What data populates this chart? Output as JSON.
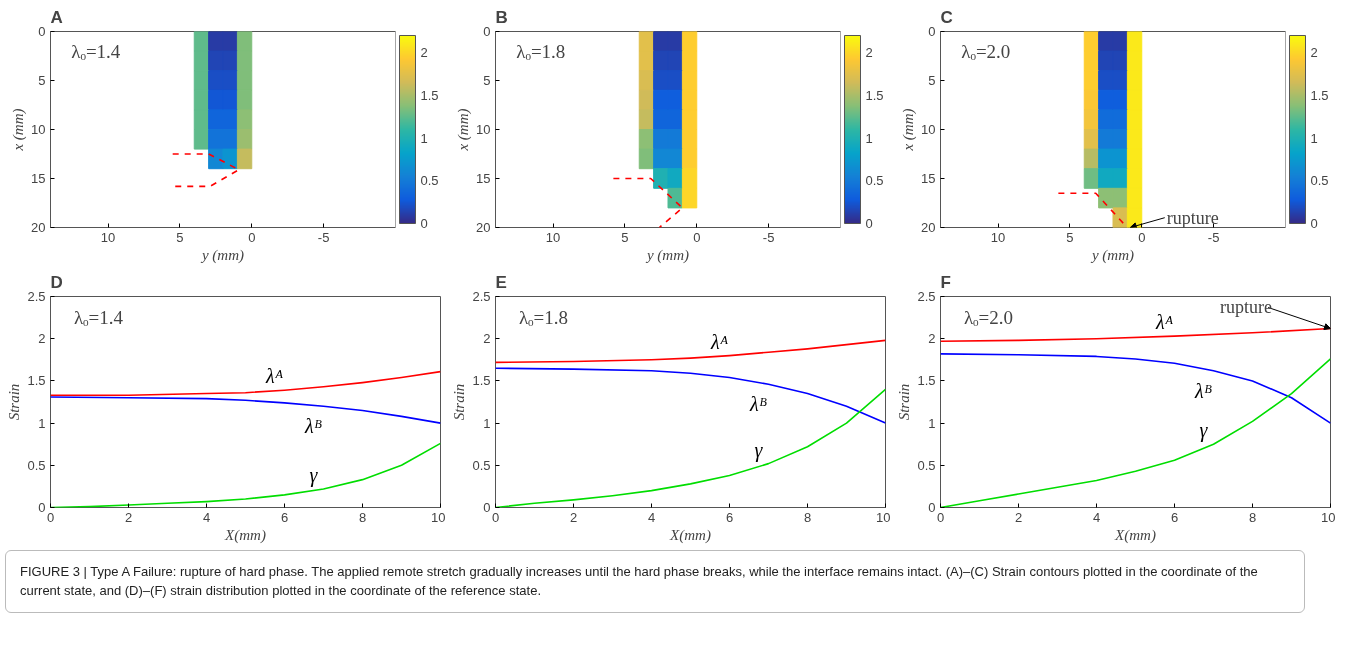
{
  "chart_data": [
    {
      "type": "scatter",
      "title": "A",
      "subtitle": "λₒ=1.4",
      "xlabel": "y (mm)",
      "ylabel": "x (mm)",
      "clim": [
        0,
        2.2
      ],
      "cticks": [
        0,
        0.5,
        1,
        1.5,
        2
      ],
      "xlim": [
        14,
        -10
      ],
      "xticks": [
        10,
        5,
        0,
        -5
      ],
      "ylim": [
        20,
        0
      ],
      "yticks": [
        0,
        5,
        10,
        15,
        20
      ],
      "series": [
        {
          "type": "scatter",
          "marker": "square",
          "x": [
            3.5,
            2.5,
            1.5,
            0.5,
            3.5,
            2.5,
            1.5,
            0.5,
            3.5,
            2.5,
            1.5,
            0.5,
            3.5,
            2.5,
            1.5,
            0.5,
            3.5,
            2.5,
            1.5,
            0.5,
            3.5,
            2.5,
            1.5,
            0.5,
            2.5,
            1.5,
            0.5
          ],
          "values": [
            1,
            1,
            1,
            1,
            3,
            3,
            3,
            3,
            5,
            5,
            5,
            5,
            7,
            7,
            7,
            7,
            9,
            9,
            9,
            9,
            11,
            11,
            11,
            11,
            13,
            13,
            13
          ],
          "cvalues": [
            1.25,
            0.1,
            0.1,
            1.35,
            1.25,
            0.15,
            0.15,
            1.35,
            1.25,
            0.2,
            0.2,
            1.35,
            1.25,
            0.25,
            0.25,
            1.35,
            1.25,
            0.35,
            0.35,
            1.4,
            1.25,
            0.45,
            0.45,
            1.45,
            0.6,
            0.7,
            1.6
          ],
          "colors": [
            "#5fbb8c",
            "#263ca6",
            "#263ca6",
            "#7fbe7b",
            "#5fbb8c",
            "#1f45b6",
            "#1f45b6",
            "#7fbe7b",
            "#5fbb8c",
            "#184ec6",
            "#184ec6",
            "#7fbe7b",
            "#5fbb8c",
            "#1157d5",
            "#1157d5",
            "#7fbe7b",
            "#5fbb8c",
            "#1066db",
            "#1066db",
            "#8ebf74",
            "#5fbb8c",
            "#1274d9",
            "#1274d9",
            "#9bbe6f",
            "#1287d4",
            "#0c94d0",
            "#c4bc5f"
          ]
        },
        {
          "type": "line",
          "color": "#ff0000",
          "line_style": "dashed",
          "x": [
            5.5,
            3.0,
            0.9,
            2.9,
            5.5
          ],
          "values": [
            12.5,
            12.5,
            14.1,
            15.8,
            15.8
          ]
        }
      ]
    },
    {
      "type": "scatter",
      "title": "B",
      "subtitle": "λₒ=1.8",
      "xlabel": "y (mm)",
      "ylabel": "x (mm)",
      "clim": [
        0,
        2.2
      ],
      "cticks": [
        0,
        0.5,
        1,
        1.5,
        2
      ],
      "xlim": [
        14,
        -10
      ],
      "xticks": [
        10,
        5,
        0,
        -5
      ],
      "ylim": [
        20,
        0
      ],
      "yticks": [
        0,
        5,
        10,
        15,
        20
      ],
      "series": [
        {
          "type": "scatter",
          "marker": "square",
          "x": [
            3.5,
            2.5,
            1.5,
            0.5,
            3.5,
            2.5,
            1.5,
            0.5,
            3.5,
            2.5,
            1.5,
            0.5,
            3.5,
            2.5,
            1.5,
            0.5,
            3.5,
            2.5,
            1.5,
            0.5,
            3.5,
            2.5,
            1.5,
            0.5,
            3.5,
            2.5,
            1.5,
            0.5,
            2.5,
            1.5,
            0.5,
            1.5,
            0.5
          ],
          "values": [
            1,
            1,
            1,
            1,
            3,
            3,
            3,
            3,
            5,
            5,
            5,
            5,
            7,
            7,
            7,
            7,
            9,
            9,
            9,
            9,
            11,
            11,
            11,
            11,
            13,
            13,
            13,
            13,
            15,
            15,
            15,
            17,
            17
          ],
          "cvalues": [
            1.75,
            0.1,
            0.1,
            1.95,
            1.75,
            0.15,
            0.15,
            1.95,
            1.7,
            0.2,
            0.2,
            1.95,
            1.65,
            0.3,
            0.3,
            1.95,
            1.6,
            0.35,
            0.35,
            1.95,
            1.4,
            0.5,
            0.5,
            1.95,
            1.35,
            0.6,
            0.6,
            1.95,
            1.0,
            0.9,
            2.0,
            1.2,
            2.0
          ],
          "colors": [
            "#e1c04b",
            "#263ca6",
            "#263ca6",
            "#fecd2f",
            "#e1c04b",
            "#1f45b6",
            "#1f45b6",
            "#fecd2f",
            "#d9bd52",
            "#184ec6",
            "#184ec6",
            "#fecd2f",
            "#d1bb59",
            "#105fdc",
            "#105fdc",
            "#fecd2f",
            "#c4bc5f",
            "#1066db",
            "#1066db",
            "#fecd2f",
            "#8ebf74",
            "#137ad7",
            "#137ad7",
            "#fecd2f",
            "#7fbe7b",
            "#1287d4",
            "#1287d4",
            "#fecd2f",
            "#1fb0b2",
            "#11a9c0",
            "#fdd628",
            "#4eba94",
            "#fdd628"
          ]
        },
        {
          "type": "line",
          "color": "#ff0000",
          "line_style": "dashed",
          "x": [
            5.8,
            3.2,
            1.0,
            2.6
          ],
          "values": [
            15,
            15,
            18,
            20
          ]
        }
      ]
    },
    {
      "type": "scatter",
      "title": "C",
      "subtitle": "λₒ=2.0",
      "xlabel": "y (mm)",
      "ylabel": "x (mm)",
      "clim": [
        0,
        2.2
      ],
      "cticks": [
        0,
        0.5,
        1,
        1.5,
        2
      ],
      "xlim": [
        14,
        -10
      ],
      "xticks": [
        10,
        5,
        0,
        -5
      ],
      "ylim": [
        20,
        0
      ],
      "yticks": [
        0,
        5,
        10,
        15,
        20
      ],
      "series": [
        {
          "type": "scatter",
          "marker": "square",
          "x": [
            3.5,
            2.5,
            1.5,
            0.5,
            3.5,
            2.5,
            1.5,
            0.5,
            3.5,
            2.5,
            1.5,
            0.5,
            3.5,
            2.5,
            1.5,
            0.5,
            3.5,
            2.5,
            1.5,
            0.5,
            3.5,
            2.5,
            1.5,
            0.5,
            3.5,
            2.5,
            1.5,
            0.5,
            3.5,
            2.5,
            1.5,
            0.5,
            2.5,
            1.5,
            0.5,
            1.5,
            0.5
          ],
          "values": [
            1,
            1,
            1,
            1,
            3,
            3,
            3,
            3,
            5,
            5,
            5,
            5,
            7,
            7,
            7,
            7,
            9,
            9,
            9,
            9,
            11,
            11,
            11,
            11,
            13,
            13,
            13,
            13,
            15,
            15,
            15,
            15,
            17,
            17,
            17,
            19,
            19
          ],
          "cvalues": [
            1.95,
            0.1,
            0.1,
            2.1,
            1.95,
            0.15,
            0.15,
            2.1,
            1.95,
            0.2,
            0.2,
            2.1,
            1.9,
            0.3,
            0.3,
            2.1,
            1.85,
            0.4,
            0.4,
            2.1,
            1.75,
            0.5,
            0.5,
            2.1,
            1.55,
            0.7,
            0.7,
            2.1,
            1.3,
            0.9,
            0.9,
            2.1,
            1.4,
            1.4,
            2.1,
            1.7,
            2.1
          ],
          "colors": [
            "#fecd2f",
            "#263ca6",
            "#263ca6",
            "#fbe81b",
            "#fecd2f",
            "#1f45b6",
            "#1f45b6",
            "#fbe81b",
            "#fecd2f",
            "#184ec6",
            "#184ec6",
            "#fbe81b",
            "#fac736",
            "#105fdc",
            "#105fdc",
            "#fbe81b",
            "#f2c43d",
            "#116dda",
            "#116dda",
            "#fbe81b",
            "#e1c04b",
            "#137ad7",
            "#137ad7",
            "#fbe81b",
            "#b6bd64",
            "#0c94d0",
            "#0c94d0",
            "#fbe81b",
            "#6fbd83",
            "#11a9c0",
            "#11a9c0",
            "#fbe81b",
            "#8ebf74",
            "#8ebf74",
            "#fbe81b",
            "#d9bd52",
            "#fbe81b"
          ]
        },
        {
          "type": "line",
          "color": "#ff0000",
          "line_style": "dashed",
          "x": [
            5.8,
            3.2,
            1.2
          ],
          "values": [
            16.5,
            16.5,
            19.7
          ]
        }
      ],
      "annotations": [
        {
          "text": "rupture",
          "x": 0.8,
          "y": 20
        }
      ]
    },
    {
      "type": "line",
      "title": "D",
      "subtitle": "λₒ=1.4",
      "xlabel": "X(mm)",
      "ylabel": "Strain",
      "xlim": [
        0,
        10
      ],
      "xticks": [
        0,
        2,
        4,
        6,
        8,
        10
      ],
      "ylim": [
        0,
        2.5
      ],
      "yticks": [
        0,
        0.5,
        1,
        1.5,
        2,
        2.5
      ],
      "series": [
        {
          "name": "λᴬ",
          "color": "#ff0000",
          "x": [
            0,
            2,
            4,
            5,
            6,
            7,
            8,
            9,
            10
          ],
          "values": [
            1.33,
            1.33,
            1.35,
            1.36,
            1.39,
            1.43,
            1.48,
            1.54,
            1.61
          ]
        },
        {
          "name": "λᴮ",
          "color": "#0000ff",
          "x": [
            0,
            2,
            4,
            5,
            6,
            7,
            8,
            9,
            10
          ],
          "values": [
            1.31,
            1.3,
            1.29,
            1.27,
            1.24,
            1.2,
            1.15,
            1.08,
            1.0
          ]
        },
        {
          "name": "γ",
          "color": "#00dd00",
          "x": [
            0,
            1,
            2,
            3,
            4,
            5,
            6,
            7,
            8,
            9,
            10
          ],
          "values": [
            0,
            0.01,
            0.03,
            0.05,
            0.07,
            0.1,
            0.15,
            0.22,
            0.33,
            0.5,
            0.76
          ]
        }
      ]
    },
    {
      "type": "line",
      "title": "E",
      "subtitle": "λₒ=1.8",
      "xlabel": "X(mm)",
      "ylabel": "Strain",
      "xlim": [
        0,
        10
      ],
      "xticks": [
        0,
        2,
        4,
        6,
        8,
        10
      ],
      "ylim": [
        0,
        2.5
      ],
      "yticks": [
        0,
        0.5,
        1,
        1.5,
        2,
        2.5
      ],
      "series": [
        {
          "name": "λᴬ",
          "color": "#ff0000",
          "x": [
            0,
            2,
            4,
            5,
            6,
            7,
            8,
            9,
            10
          ],
          "values": [
            1.72,
            1.73,
            1.75,
            1.77,
            1.8,
            1.84,
            1.88,
            1.93,
            1.98
          ]
        },
        {
          "name": "λᴮ",
          "color": "#0000ff",
          "x": [
            0,
            2,
            4,
            5,
            6,
            7,
            8,
            9,
            10
          ],
          "values": [
            1.65,
            1.64,
            1.62,
            1.59,
            1.54,
            1.46,
            1.35,
            1.2,
            1.0
          ]
        },
        {
          "name": "γ",
          "color": "#00dd00",
          "x": [
            0,
            1,
            2,
            3,
            4,
            5,
            6,
            7,
            8,
            9,
            10
          ],
          "values": [
            0,
            0.05,
            0.09,
            0.14,
            0.2,
            0.28,
            0.38,
            0.52,
            0.72,
            1.0,
            1.4
          ]
        }
      ]
    },
    {
      "type": "line",
      "title": "F",
      "subtitle": "λₒ=2.0",
      "xlabel": "X(mm)",
      "ylabel": "Strain",
      "xlim": [
        0,
        10
      ],
      "xticks": [
        0,
        2,
        4,
        6,
        8,
        10
      ],
      "ylim": [
        0,
        2.5
      ],
      "yticks": [
        0,
        0.5,
        1,
        1.5,
        2,
        2.5
      ],
      "series": [
        {
          "name": "λᴬ",
          "color": "#ff0000",
          "x": [
            0,
            2,
            4,
            6,
            8,
            10
          ],
          "values": [
            1.97,
            1.98,
            2.0,
            2.03,
            2.07,
            2.12
          ]
        },
        {
          "name": "λᴮ",
          "color": "#0000ff",
          "x": [
            0,
            2,
            4,
            5,
            6,
            7,
            8,
            9,
            10
          ],
          "values": [
            1.82,
            1.81,
            1.79,
            1.76,
            1.71,
            1.62,
            1.5,
            1.3,
            1.0
          ]
        },
        {
          "name": "γ",
          "color": "#00dd00",
          "x": [
            0,
            1,
            2,
            3,
            4,
            5,
            6,
            7,
            8,
            9,
            10
          ],
          "values": [
            0,
            0.08,
            0.16,
            0.24,
            0.32,
            0.43,
            0.56,
            0.75,
            1.02,
            1.35,
            1.76
          ]
        }
      ],
      "annotations": [
        {
          "text": "rupture",
          "x": 10,
          "y": 2.12
        },
        "FIGURE 3 | Type A Failure: rupture of hard phase. The applied remote stretch gradually increases until the hard phase breaks, while the interface remains intact. (A)–(C) Strain contours plotted in the coordinate of the current state, and (D)–(F) strain distribution plotted in the coordinate of the reference state."
      ]
    }
  ]
}
